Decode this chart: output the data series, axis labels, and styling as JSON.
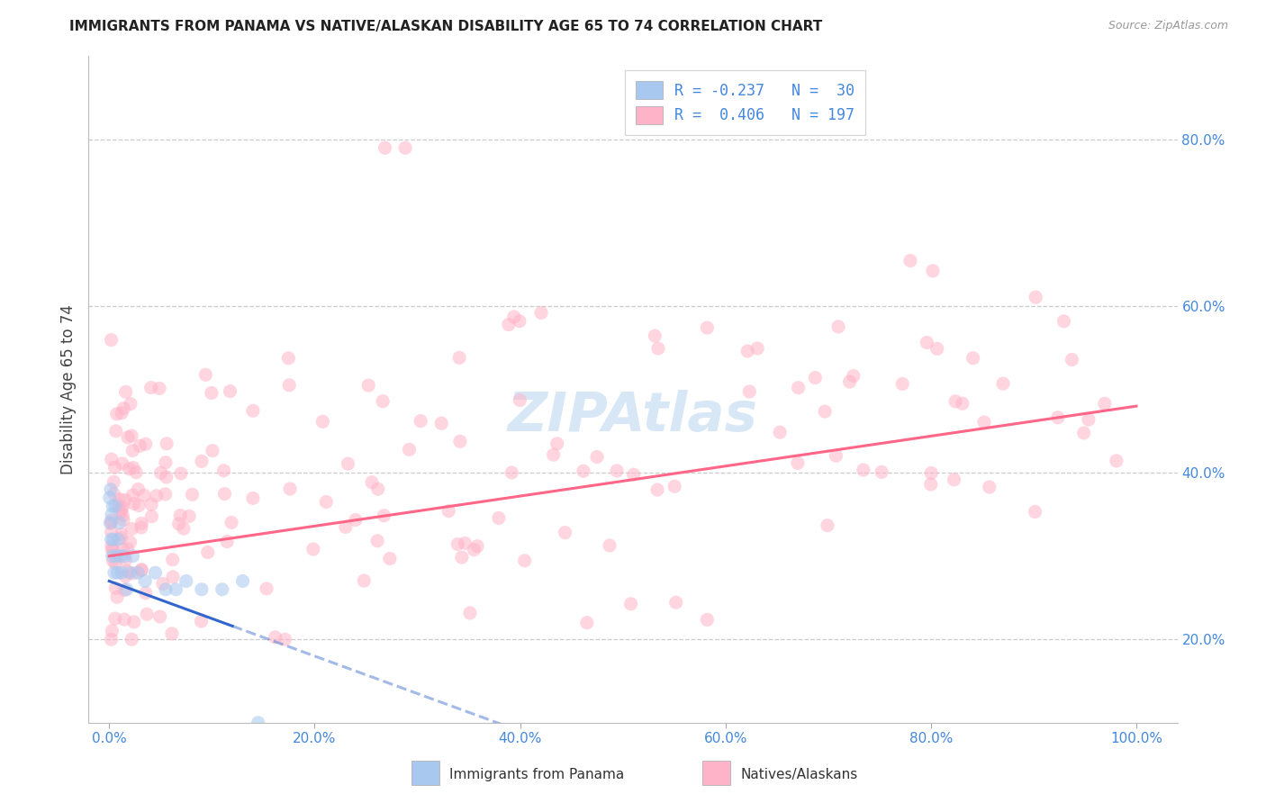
{
  "title": "IMMIGRANTS FROM PANAMA VS NATIVE/ALASKAN DISABILITY AGE 65 TO 74 CORRELATION CHART",
  "source": "Source: ZipAtlas.com",
  "ylabel": "Disability Age 65 to 74",
  "x_tick_labels": [
    "0.0%",
    "20.0%",
    "40.0%",
    "60.0%",
    "80.0%",
    "100.0%"
  ],
  "x_tick_vals": [
    0,
    20,
    40,
    60,
    80,
    100
  ],
  "y_tick_labels": [
    "20.0%",
    "40.0%",
    "60.0%",
    "80.0%"
  ],
  "y_tick_vals": [
    20,
    40,
    60,
    80
  ],
  "xlim": [
    -2,
    104
  ],
  "ylim": [
    10,
    90
  ],
  "blue_color": "#A8C8F0",
  "pink_color": "#FFB3C8",
  "blue_line_color": "#3366CC",
  "pink_line_color": "#FF6688",
  "title_color": "#222222",
  "source_color": "#999999",
  "axis_label_color": "#4488DD",
  "grid_color": "#CCCCCC",
  "background_color": "#FFFFFF",
  "watermark_color": "#B8D4F0",
  "scatter_size": 120,
  "scatter_alpha": 0.55,
  "line_width": 2.2
}
